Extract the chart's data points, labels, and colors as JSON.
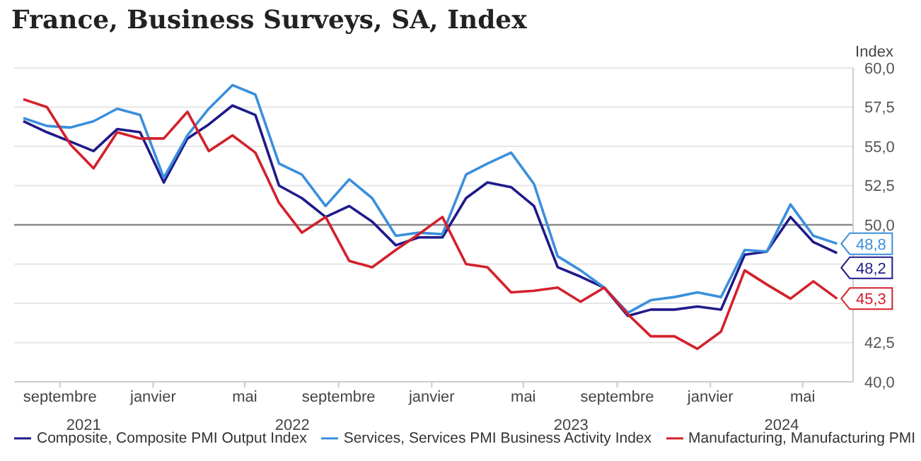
{
  "chart_data": {
    "type": "line",
    "title": "France, Business Surveys, SA, Index",
    "ylabel": "Index",
    "x": [
      "2021-07-15",
      "2021-08-15",
      "2021-09-15",
      "2021-10-15",
      "2021-11-15",
      "2021-12-15",
      "2022-01-15",
      "2022-02-15",
      "2022-03-15",
      "2022-04-15",
      "2022-05-15",
      "2022-06-15",
      "2022-07-15",
      "2022-08-15",
      "2022-09-15",
      "2022-10-15",
      "2022-11-15",
      "2022-12-15",
      "2023-01-15",
      "2023-02-15",
      "2023-03-15",
      "2023-04-15",
      "2023-05-15",
      "2023-06-15",
      "2023-07-15",
      "2023-08-15",
      "2023-09-15",
      "2023-10-15",
      "2023-11-15",
      "2023-12-15",
      "2024-01-15",
      "2024-02-15",
      "2024-03-15",
      "2024-04-15",
      "2024-05-15",
      "2024-06-15"
    ],
    "series": [
      {
        "name": "Composite, Composite PMI Output Index",
        "color": "#1f1a8a",
        "values": [
          56.6,
          55.9,
          55.3,
          54.7,
          56.1,
          55.9,
          52.7,
          55.5,
          56.4,
          57.6,
          57.0,
          52.5,
          51.7,
          50.5,
          51.2,
          50.2,
          48.7,
          49.2,
          49.2,
          51.7,
          52.7,
          52.4,
          51.2,
          47.3,
          46.7,
          46.0,
          44.2,
          44.6,
          44.6,
          44.8,
          44.6,
          48.1,
          48.3,
          50.5,
          48.9,
          48.2
        ],
        "value_labels": [
          null,
          null,
          null,
          null,
          null,
          null,
          null,
          null,
          null,
          null,
          null,
          null,
          null,
          null,
          null,
          null,
          null,
          null,
          null,
          null,
          null,
          null,
          null,
          null,
          null,
          null,
          null,
          null,
          null,
          null,
          null,
          null,
          null,
          null,
          null,
          "48,2"
        ]
      },
      {
        "name": "Services, Services PMI Business Activity Index",
        "color": "#3b8fdc",
        "values": [
          56.8,
          56.3,
          56.2,
          56.6,
          57.4,
          57.0,
          53.0,
          55.7,
          57.4,
          58.9,
          58.3,
          53.9,
          53.2,
          51.2,
          52.9,
          51.7,
          49.3,
          49.5,
          49.4,
          53.2,
          53.9,
          54.6,
          52.6,
          48.0,
          47.1,
          46.0,
          44.4,
          45.2,
          45.4,
          45.7,
          45.4,
          48.4,
          48.3,
          51.3,
          49.3,
          48.8
        ],
        "value_labels": [
          null,
          null,
          null,
          null,
          null,
          null,
          null,
          null,
          null,
          null,
          null,
          null,
          null,
          null,
          null,
          null,
          null,
          null,
          null,
          null,
          null,
          null,
          null,
          null,
          null,
          null,
          null,
          null,
          null,
          null,
          null,
          null,
          null,
          null,
          null,
          "48,8"
        ]
      },
      {
        "name": "Manufacturing, Manufacturing PMI",
        "color": "#d3202b",
        "values": [
          58.0,
          57.5,
          55.1,
          53.6,
          55.9,
          55.5,
          55.5,
          57.2,
          54.7,
          55.7,
          54.6,
          51.4,
          49.5,
          50.5,
          47.7,
          47.3,
          48.4,
          49.4,
          50.5,
          47.5,
          47.3,
          45.7,
          45.8,
          46.0,
          45.1,
          46.0,
          44.3,
          42.9,
          42.9,
          42.1,
          43.2,
          47.1,
          46.2,
          45.3,
          46.4,
          45.3
        ],
        "value_labels": [
          null,
          null,
          null,
          null,
          null,
          null,
          null,
          null,
          null,
          null,
          null,
          null,
          null,
          null,
          null,
          null,
          null,
          null,
          null,
          null,
          null,
          null,
          null,
          null,
          null,
          null,
          null,
          null,
          null,
          null,
          null,
          null,
          null,
          null,
          null,
          "45,3"
        ]
      }
    ],
    "xlim": [
      "2021-07-03",
      "2024-07-06"
    ],
    "xticks": [
      {
        "value": "2021-09-01",
        "label": "septembre"
      },
      {
        "value": "2022-01-01",
        "label": "janvier"
      },
      {
        "value": "2022-05-01",
        "label": "mai"
      },
      {
        "value": "2022-09-01",
        "label": "septembre"
      },
      {
        "value": "2023-01-01",
        "label": "janvier"
      },
      {
        "value": "2023-05-01",
        "label": "mai"
      },
      {
        "value": "2023-09-01",
        "label": "septembre"
      },
      {
        "value": "2024-01-01",
        "label": "janvier"
      },
      {
        "value": "2024-05-01",
        "label": "mai"
      }
    ],
    "annotations": [
      "2021",
      "2022",
      "2023",
      "2024"
    ],
    "ylim": [
      40,
      60
    ],
    "yticks": [
      {
        "value": 40,
        "label": "40,0"
      },
      {
        "value": 42.5,
        "label": "42,5"
      },
      {
        "value": 45,
        "label": null
      },
      {
        "value": 47.5,
        "label": null
      },
      {
        "value": 50,
        "label": "50,0"
      },
      {
        "value": 52.5,
        "label": "52,5"
      },
      {
        "value": 55,
        "label": "55,0"
      },
      {
        "value": 57.5,
        "label": "57,5"
      },
      {
        "value": 60,
        "label": "60,0"
      }
    ],
    "ref_lines": [
      {
        "axis": "y",
        "value": 50,
        "color": "#8a8a8a"
      }
    ],
    "grid": "y",
    "legend": "bottom",
    "marker": "none",
    "line_style": "solid"
  }
}
